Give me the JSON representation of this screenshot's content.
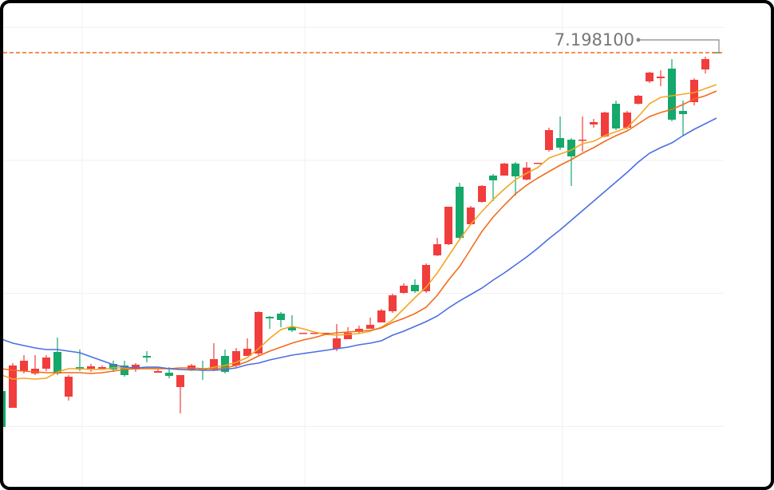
{
  "chart_data": {
    "type": "candlestick",
    "open": [
      7.17266,
      7.1714,
      7.17416,
      7.17398,
      7.17434,
      7.1756,
      7.17224,
      7.17446,
      7.17434,
      7.17434,
      7.1747,
      7.17458,
      7.17428,
      7.1753,
      7.17404,
      7.17404,
      7.17296,
      7.17428,
      7.17434,
      7.17428,
      7.1753,
      7.17458,
      7.1753,
      7.17548,
      7.17824,
      7.17848,
      7.17746,
      7.17698,
      7.17698,
      7.17698,
      7.17584,
      7.17656,
      7.1771,
      7.17734,
      7.17782,
      7.17866,
      7.18004,
      7.18064,
      7.18016,
      7.18286,
      7.1837,
      7.18802,
      7.1852,
      7.18688,
      7.18886,
      7.18886,
      7.18976,
      7.18856,
      7.18976,
      7.19078,
      7.19168,
      7.19156,
      7.1915,
      7.1927,
      7.1918,
      7.19426,
      7.19246,
      7.19426,
      7.19594,
      7.19618,
      7.1969,
      7.19372,
      7.19438,
      7.19684,
      7.19814
    ],
    "high": [
      7.17278,
      7.17476,
      7.17536,
      7.17536,
      7.17536,
      7.17668,
      7.17386,
      7.17578,
      7.1747,
      7.17458,
      7.17494,
      7.17494,
      7.17476,
      7.17566,
      7.17428,
      7.17446,
      7.17386,
      7.1747,
      7.17494,
      7.17626,
      7.17578,
      7.1759,
      7.17662,
      7.17866,
      7.1783,
      7.1786,
      7.17836,
      7.17704,
      7.17704,
      7.17704,
      7.1777,
      7.17746,
      7.17758,
      7.17818,
      7.17884,
      7.17998,
      7.18076,
      7.18106,
      7.18226,
      7.18418,
      7.18652,
      7.18832,
      7.18658,
      7.18814,
      7.18898,
      7.18982,
      7.18988,
      7.18988,
      7.18982,
      7.19246,
      7.1933,
      7.19168,
      7.1933,
      7.19312,
      7.19366,
      7.1945,
      7.19372,
      7.19492,
      7.19666,
      7.19678,
      7.19762,
      7.1945,
      7.19618,
      7.1978,
      7.19814
    ],
    "low": [
      7.16984,
      7.1714,
      7.17398,
      7.17386,
      7.17416,
      7.17386,
      7.17194,
      7.17416,
      7.1741,
      7.17434,
      7.1741,
      7.17374,
      7.1741,
      7.17482,
      7.17404,
      7.17362,
      7.17098,
      7.17416,
      7.1735,
      7.17416,
      7.17398,
      7.17446,
      7.1753,
      7.17536,
      7.17734,
      7.17746,
      7.1771,
      7.17698,
      7.17698,
      7.17698,
      7.17566,
      7.17656,
      7.17698,
      7.17734,
      7.17782,
      7.17854,
      7.17998,
      7.18004,
      7.18004,
      7.1828,
      7.18364,
      7.18406,
      7.18514,
      7.18682,
      7.18694,
      7.18886,
      7.18736,
      7.1885,
      7.18976,
      7.19066,
      7.19078,
      7.18808,
      7.19066,
      7.19246,
      7.19174,
      7.19228,
      7.19234,
      7.1942,
      7.19582,
      7.19558,
      7.19294,
      7.19186,
      7.19414,
      7.19654,
      7.1981
    ],
    "close": [
      7.16996,
      7.17458,
      7.17494,
      7.17434,
      7.17518,
      7.17398,
      7.17374,
      7.17428,
      7.17452,
      7.17446,
      7.17428,
      7.17386,
      7.17464,
      7.17518,
      7.17416,
      7.1738,
      7.17386,
      7.17458,
      7.17422,
      7.17506,
      7.1741,
      7.17566,
      7.17584,
      7.1786,
      7.17812,
      7.178,
      7.17722,
      7.17704,
      7.17704,
      7.17704,
      7.17662,
      7.17704,
      7.17734,
      7.17764,
      7.17872,
      7.17986,
      7.18058,
      7.18016,
      7.18214,
      7.1837,
      7.18652,
      7.18418,
      7.18646,
      7.18808,
      7.1885,
      7.18976,
      7.1888,
      7.18946,
      7.18982,
      7.19228,
      7.19096,
      7.1903,
      7.19156,
      7.19288,
      7.1936,
      7.1924,
      7.1936,
      7.19486,
      7.1966,
      7.1963,
      7.19306,
      7.19348,
      7.19606,
      7.19762,
      7.1981
    ],
    "up_color": "#f23d3d",
    "down_color": "#15a86b",
    "series": [
      {
        "color": "#f5a623",
        "values": [
          7.17386,
          7.17356,
          7.17362,
          7.17356,
          7.17362,
          7.1741,
          7.17434,
          7.17434,
          7.17428,
          7.17428,
          7.1744,
          7.1744,
          7.17434,
          7.1744,
          7.1744,
          7.17434,
          7.17428,
          7.17422,
          7.17428,
          7.17446,
          7.17458,
          7.17482,
          7.17518,
          7.17584,
          7.17662,
          7.17728,
          7.17752,
          7.17734,
          7.1771,
          7.17692,
          7.17686,
          7.17692,
          7.17698,
          7.17716,
          7.17746,
          7.178,
          7.17884,
          7.17968,
          7.18046,
          7.18154,
          7.1828,
          7.18406,
          7.1852,
          7.18616,
          7.18706,
          7.18784,
          7.18856,
          7.18904,
          7.18946,
          7.19018,
          7.19048,
          7.19078,
          7.19126,
          7.19144,
          7.19186,
          7.19216,
          7.19246,
          7.1933,
          7.19426,
          7.19474,
          7.19486,
          7.19498,
          7.1951,
          7.1954,
          7.1957
        ]
      },
      {
        "color": "#f26b1d",
        "values": [
          7.17434,
          7.17422,
          7.17416,
          7.1741,
          7.17404,
          7.17404,
          7.17404,
          7.17404,
          7.17398,
          7.17404,
          7.17416,
          7.17428,
          7.17434,
          7.17434,
          7.17434,
          7.17434,
          7.1744,
          7.1744,
          7.17434,
          7.17434,
          7.1744,
          7.17458,
          7.17488,
          7.1753,
          7.17566,
          7.17596,
          7.17626,
          7.1765,
          7.17668,
          7.17692,
          7.17704,
          7.1771,
          7.17716,
          7.17722,
          7.1774,
          7.17782,
          7.17812,
          7.17848,
          7.17896,
          7.17986,
          7.181,
          7.18202,
          7.18334,
          7.18466,
          7.18574,
          7.18664,
          7.18748,
          7.18814,
          7.18868,
          7.18916,
          7.18964,
          7.19006,
          7.19054,
          7.19096,
          7.19144,
          7.19186,
          7.19222,
          7.19276,
          7.1933,
          7.1936,
          7.19384,
          7.1942,
          7.19462,
          7.19486,
          7.19522
        ]
      },
      {
        "color": "#4a6fe3",
        "values": [
          7.17656,
          7.17626,
          7.17608,
          7.1759,
          7.17578,
          7.17578,
          7.17566,
          7.17554,
          7.17524,
          7.17494,
          7.17464,
          7.17446,
          7.1744,
          7.17446,
          7.17446,
          7.17434,
          7.17428,
          7.17428,
          7.17422,
          7.17422,
          7.17428,
          7.1744,
          7.17464,
          7.17476,
          7.175,
          7.17518,
          7.17536,
          7.17548,
          7.1756,
          7.17572,
          7.17584,
          7.17596,
          7.17614,
          7.17626,
          7.17644,
          7.17686,
          7.17716,
          7.17752,
          7.17788,
          7.1783,
          7.1789,
          7.17944,
          7.17992,
          7.1804,
          7.181,
          7.18154,
          7.18214,
          7.18274,
          7.1834,
          7.18412,
          7.18478,
          7.1855,
          7.18622,
          7.18694,
          7.18766,
          7.18838,
          7.1891,
          7.18988,
          7.19054,
          7.19096,
          7.19132,
          7.19186,
          7.19234,
          7.19276,
          7.19318
        ]
      }
    ],
    "price_line": {
      "value": 7.1981,
      "label": "7.198100",
      "color": "#f26b1d"
    },
    "ylim": [
      7.16546,
      7.20206
    ],
    "yticks": [
      7.17,
      7.18,
      7.19,
      7.2
    ],
    "grid": true
  }
}
